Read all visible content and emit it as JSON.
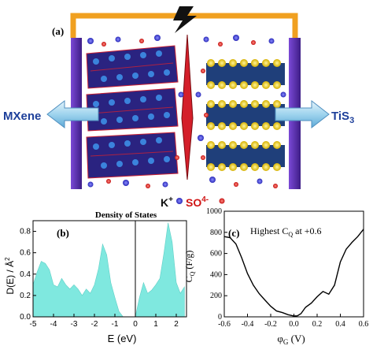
{
  "panels": {
    "a": {
      "label": "(a)",
      "left_material": "MXene",
      "right_material": "TiS",
      "right_material_subscript": "3",
      "legend_cation": "K",
      "legend_cation_charge": "+",
      "legend_anion": "SO",
      "legend_anion_charge": "4-"
    },
    "b": {
      "label": "(b)",
      "title": "Density of States",
      "ylabel": "D(E) / Å",
      "ylabel_superscript": "2",
      "xlabel": "E (eV)"
    },
    "c": {
      "label": "(c)",
      "annotation": "Highest C",
      "annotation_subscript": "Q",
      "annotation_suffix": " at +0.6",
      "ylabel_main": "C",
      "ylabel_sub": "Q",
      "ylabel_unit": " (F/g)",
      "xlabel_main": "φ",
      "xlabel_sub": "G",
      "xlabel_unit": " (V)"
    }
  },
  "colors": {
    "frame": "#f0a020",
    "electrode": "#5a2ea8",
    "separator": "#d41f2a",
    "dos_fill": "#7fe8df",
    "curve": "#000000",
    "cation": "#3a3ad0",
    "anion": "#e02020"
  },
  "chart_data": [
    {
      "type": "area",
      "title": "Density of States",
      "xlabel": "E (eV)",
      "ylabel": "D(E) / Å2",
      "xlim": [
        -5,
        2.5
      ],
      "ylim": [
        0,
        0.9
      ],
      "xticks": [
        "-5",
        "-4",
        "-3",
        "-2",
        "-1",
        "0",
        "1",
        "2"
      ],
      "yticks": [
        "0.0",
        "0.2",
        "0.4",
        "0.6",
        "0.8"
      ],
      "x": [
        -5.0,
        -4.8,
        -4.6,
        -4.4,
        -4.2,
        -4.0,
        -3.8,
        -3.6,
        -3.4,
        -3.2,
        -3.0,
        -2.8,
        -2.6,
        -2.4,
        -2.2,
        -2.0,
        -1.8,
        -1.6,
        -1.4,
        -1.2,
        -1.0,
        -0.8,
        -0.6,
        0.0,
        0.2,
        0.4,
        0.6,
        0.8,
        1.0,
        1.2,
        1.4,
        1.6,
        1.8,
        2.0,
        2.2,
        2.4
      ],
      "y": [
        0.3,
        0.42,
        0.52,
        0.5,
        0.44,
        0.3,
        0.28,
        0.36,
        0.3,
        0.26,
        0.3,
        0.26,
        0.2,
        0.26,
        0.22,
        0.3,
        0.45,
        0.68,
        0.58,
        0.32,
        0.18,
        0.05,
        0.0,
        0.0,
        0.18,
        0.32,
        0.22,
        0.25,
        0.3,
        0.36,
        0.6,
        0.88,
        0.7,
        0.32,
        0.22,
        0.28
      ]
    },
    {
      "type": "line",
      "xlabel": "φG (V)",
      "ylabel": "CQ (F/g)",
      "xlim": [
        -0.6,
        0.6
      ],
      "ylim": [
        0,
        1000
      ],
      "xticks": [
        "-0.6",
        "-0.4",
        "-0.2",
        "0.0",
        "0.2",
        "0.4",
        "0.6"
      ],
      "yticks": [
        "0",
        "200",
        "400",
        "600",
        "800",
        "1000"
      ],
      "x": [
        -0.6,
        -0.55,
        -0.5,
        -0.45,
        -0.4,
        -0.35,
        -0.3,
        -0.25,
        -0.2,
        -0.15,
        -0.1,
        -0.05,
        0.0,
        0.03,
        0.06,
        0.1,
        0.15,
        0.2,
        0.25,
        0.3,
        0.35,
        0.4,
        0.45,
        0.5,
        0.55,
        0.6
      ],
      "y": [
        760,
        750,
        690,
        560,
        410,
        300,
        220,
        160,
        100,
        55,
        40,
        20,
        8,
        10,
        30,
        90,
        130,
        190,
        240,
        215,
        300,
        520,
        640,
        705,
        760,
        830
      ]
    }
  ]
}
